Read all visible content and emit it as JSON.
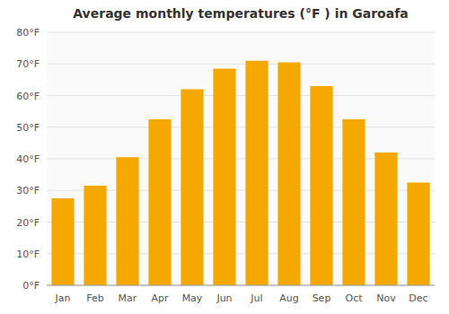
{
  "chart_data": {
    "type": "bar",
    "title": "Average monthly temperatures (°F ) in Garoafa",
    "categories": [
      "Jan",
      "Feb",
      "Mar",
      "Apr",
      "May",
      "Jun",
      "Jul",
      "Aug",
      "Sep",
      "Oct",
      "Nov",
      "Dec"
    ],
    "values": [
      27.5,
      31.5,
      40.5,
      52.5,
      62.0,
      68.5,
      71.0,
      70.5,
      63.0,
      52.5,
      42.0,
      32.5
    ],
    "color": "#F5A800",
    "ylim": [
      0,
      80
    ],
    "yticks": [
      {
        "value": 0,
        "label": "0°F"
      },
      {
        "value": 10,
        "label": "10°F"
      },
      {
        "value": 20,
        "label": "20°F"
      },
      {
        "value": 30,
        "label": "30°F"
      },
      {
        "value": 40,
        "label": "40°F"
      },
      {
        "value": 50,
        "label": "50°F"
      },
      {
        "value": 60,
        "label": "60°F"
      },
      {
        "value": 70,
        "label": "70°F"
      },
      {
        "value": 80,
        "label": "80°F"
      }
    ],
    "grid": true
  }
}
